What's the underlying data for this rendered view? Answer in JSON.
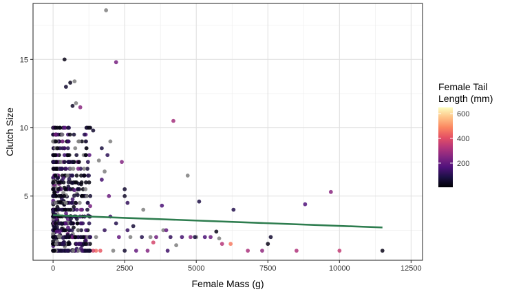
{
  "chart_data": {
    "type": "scatter",
    "xlabel": "Female Mass (g)",
    "ylabel": "Clutch Size",
    "xlim": [
      -700,
      12900
    ],
    "ylim": [
      0.3,
      19.1
    ],
    "x_ticks": [
      0,
      2500,
      5000,
      7500,
      10000,
      12500
    ],
    "x_tick_labels": [
      "0",
      "2500",
      "5000",
      "7500",
      "10000",
      "12500"
    ],
    "y_ticks": [
      5,
      10,
      15
    ],
    "y_tick_labels": [
      "5",
      "10",
      "15"
    ],
    "x_minor_ticks": [
      1250,
      3750,
      6250,
      8750,
      11250
    ],
    "y_minor_ticks": [
      2.5,
      7.5,
      12.5,
      17.5
    ],
    "grid": true,
    "legend": {
      "title_lines": [
        "Female Tail",
        "Length (mm)"
      ],
      "position": "right",
      "range": [
        5,
        650
      ],
      "ticks": [
        200,
        400,
        600
      ],
      "tick_labels": [
        "200",
        "400",
        "600"
      ],
      "na_color": "#7f7f7f"
    },
    "color_scale": [
      "#000004",
      "#1c1044",
      "#4f127b",
      "#812581",
      "#b5367a",
      "#e55064",
      "#fb8761",
      "#fec287",
      "#fcfdbf"
    ],
    "trend_line": {
      "x": [
        0,
        11500
      ],
      "y": [
        3.6,
        2.7
      ],
      "color": "#2e7d4f"
    },
    "point_opacity": 0.85,
    "points": [
      {
        "x": 1850,
        "y": 18.6,
        "c": null
      },
      {
        "x": 400,
        "y": 15.0,
        "c": 30
      },
      {
        "x": 2200,
        "y": 14.8,
        "c": 230
      },
      {
        "x": 600,
        "y": 13.3,
        "c": 40
      },
      {
        "x": 750,
        "y": 13.4,
        "c": null
      },
      {
        "x": 450,
        "y": 13.0,
        "c": 60
      },
      {
        "x": 800,
        "y": 11.8,
        "c": null
      },
      {
        "x": 680,
        "y": 11.6,
        "c": 50
      },
      {
        "x": 950,
        "y": 11.5,
        "c": 260
      },
      {
        "x": 4200,
        "y": 10.5,
        "c": 300
      },
      {
        "x": 100,
        "y": 10.0,
        "c": 20
      },
      {
        "x": 350,
        "y": 10.0,
        "c": 25
      },
      {
        "x": 1300,
        "y": 10.0,
        "c": 45
      },
      {
        "x": 1400,
        "y": 9.8,
        "c": 60
      },
      {
        "x": 2000,
        "y": 9.0,
        "c": null
      },
      {
        "x": 1700,
        "y": 8.5,
        "c": 80
      },
      {
        "x": 1900,
        "y": 8.0,
        "c": 110
      },
      {
        "x": 1600,
        "y": 7.6,
        "c": null
      },
      {
        "x": 2400,
        "y": 7.5,
        "c": 250
      },
      {
        "x": 1200,
        "y": 7.0,
        "c": 70
      },
      {
        "x": 1800,
        "y": 6.8,
        "c": null
      },
      {
        "x": 4700,
        "y": 6.5,
        "c": null
      },
      {
        "x": 1250,
        "y": 6.5,
        "c": 90
      },
      {
        "x": 1700,
        "y": 6.2,
        "c": 150
      },
      {
        "x": 2500,
        "y": 5.5,
        "c": 60
      },
      {
        "x": 9700,
        "y": 5.3,
        "c": 260
      },
      {
        "x": 1950,
        "y": 5.0,
        "c": 210
      },
      {
        "x": 2500,
        "y": 5.0,
        "c": 50
      },
      {
        "x": 5100,
        "y": 4.6,
        "c": 90
      },
      {
        "x": 8800,
        "y": 4.4,
        "c": 170
      },
      {
        "x": 2600,
        "y": 4.5,
        "c": 120
      },
      {
        "x": 3800,
        "y": 4.3,
        "c": 160
      },
      {
        "x": 3150,
        "y": 4.0,
        "c": null
      },
      {
        "x": 6300,
        "y": 4.0,
        "c": 100
      },
      {
        "x": 2000,
        "y": 3.5,
        "c": 140
      },
      {
        "x": 2200,
        "y": 3.0,
        "c": 100
      },
      {
        "x": 2600,
        "y": 2.5,
        "c": 130
      },
      {
        "x": 2800,
        "y": 2.8,
        "c": 70
      },
      {
        "x": 3400,
        "y": 2.0,
        "c": null
      },
      {
        "x": 3500,
        "y": 1.6,
        "c": 380
      },
      {
        "x": 3850,
        "y": 2.5,
        "c": null
      },
      {
        "x": 3950,
        "y": 2.5,
        "c": 200
      },
      {
        "x": 4100,
        "y": 2.0,
        "c": 120
      },
      {
        "x": 4300,
        "y": 1.4,
        "c": null
      },
      {
        "x": 4500,
        "y": 2.0,
        "c": 150
      },
      {
        "x": 4800,
        "y": 2.0,
        "c": 250
      },
      {
        "x": 5000,
        "y": 2.0,
        "c": null
      },
      {
        "x": 5300,
        "y": 2.0,
        "c": 160
      },
      {
        "x": 5500,
        "y": 2.0,
        "c": 210
      },
      {
        "x": 5700,
        "y": 2.4,
        "c": 30
      },
      {
        "x": 5800,
        "y": 1.9,
        "c": null
      },
      {
        "x": 5900,
        "y": 1.5,
        "c": 330
      },
      {
        "x": 6200,
        "y": 1.5,
        "c": 470
      },
      {
        "x": 6800,
        "y": 1.0,
        "c": 310
      },
      {
        "x": 7300,
        "y": 1.0,
        "c": 270
      },
      {
        "x": 7500,
        "y": 1.5,
        "c": 30
      },
      {
        "x": 7600,
        "y": 2.0,
        "c": 60
      },
      {
        "x": 8500,
        "y": 1.0,
        "c": 320
      },
      {
        "x": 10000,
        "y": 1.0,
        "c": 350
      },
      {
        "x": 11500,
        "y": 1.0,
        "c": 30
      },
      {
        "x": 4950,
        "y": 2.0,
        "c": 80
      },
      {
        "x": 2300,
        "y": 2.0,
        "c": 200
      },
      {
        "x": 2700,
        "y": 2.0,
        "c": null
      },
      {
        "x": 3100,
        "y": 2.0,
        "c": 100
      },
      {
        "x": 3600,
        "y": 2.0,
        "c": 220
      },
      {
        "x": 1500,
        "y": 1.0,
        "c": 450
      },
      {
        "x": 1650,
        "y": 1.0,
        "c": 420
      },
      {
        "x": 1400,
        "y": 1.0,
        "c": 380
      },
      {
        "x": 2900,
        "y": 1.0,
        "c": 200
      },
      {
        "x": 3300,
        "y": 1.0,
        "c": 250
      },
      {
        "x": 2100,
        "y": 1.0,
        "c": null
      },
      {
        "x": 2500,
        "y": 1.0,
        "c": 60
      },
      {
        "x": 4000,
        "y": 1.0,
        "c": 140
      },
      {
        "x": 1200,
        "y": 1.5,
        "c": 180
      },
      {
        "x": 1500,
        "y": 2.0,
        "c": null
      },
      {
        "x": 1800,
        "y": 2.5,
        "c": 120
      }
    ],
    "cluster": {
      "n": 800,
      "x_max": 1300,
      "y_min": 1,
      "y_max": 10,
      "palette_weights": [
        {
          "c": 20,
          "w": 5
        },
        {
          "c": 60,
          "w": 3
        },
        {
          "c": 100,
          "w": 2
        },
        {
          "c": 140,
          "w": 1.5
        },
        {
          "c": 180,
          "w": 1
        },
        {
          "c": 230,
          "w": 0.5
        },
        {
          "c": null,
          "w": 3
        }
      ]
    }
  }
}
